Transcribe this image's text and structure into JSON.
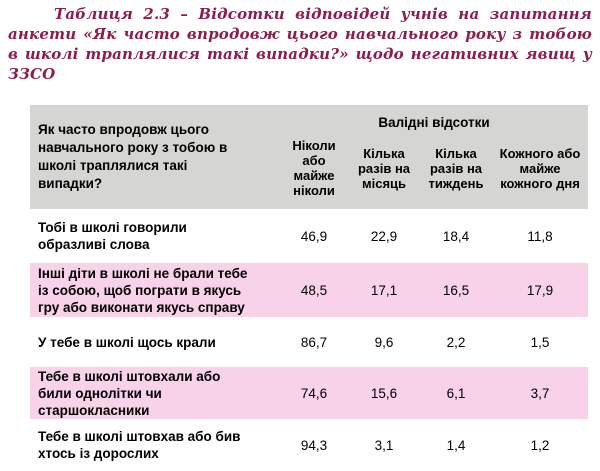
{
  "caption": "Таблиця 2.3 – Відсотки відповідей учнів на запитання анкети «Як часто впродовж цього навчального року з тобою в школі траплялися такі випадки?» щодо негативних явищ у ЗЗСО",
  "table": {
    "question_header": "Як часто впродовж цього навчального року з тобою в школі траплялися такі випадки?",
    "group_header": "Валідні відсотки",
    "columns": [
      "Ніколи або майже ніколи",
      "Кілька разів на місяць",
      "Кілька разів на тиждень",
      "Кожного або майже кожного дня"
    ],
    "rows": [
      {
        "label": "Тобі в школі говорили образливі слова",
        "values": [
          "46,9",
          "22,9",
          "18,4",
          "11,8"
        ]
      },
      {
        "label": "Інші діти в школі не брали тебе із собою, щоб пограти в якусь гру або виконати якусь справу",
        "values": [
          "48,5",
          "17,1",
          "16,5",
          "17,9"
        ]
      },
      {
        "label": "У тебе в школі щось крали",
        "values": [
          "86,7",
          "9,6",
          "2,2",
          "1,5"
        ]
      },
      {
        "label": "Тебе в школі штовхали або били однолітки чи старшокласники",
        "values": [
          "74,6",
          "15,6",
          "6,1",
          "3,7"
        ]
      },
      {
        "label": "Тебе в школі штовхав або бив хтось із дорослих",
        "values": [
          "94,3",
          "3,1",
          "1,4",
          "1,2"
        ]
      }
    ]
  },
  "colors": {
    "caption_text": "#8e1b4f",
    "header_bg": "#d5d5d3",
    "row_alt_bg": "#f8d2e8",
    "body_text": "#000000",
    "page_bg": "#ffffff"
  }
}
